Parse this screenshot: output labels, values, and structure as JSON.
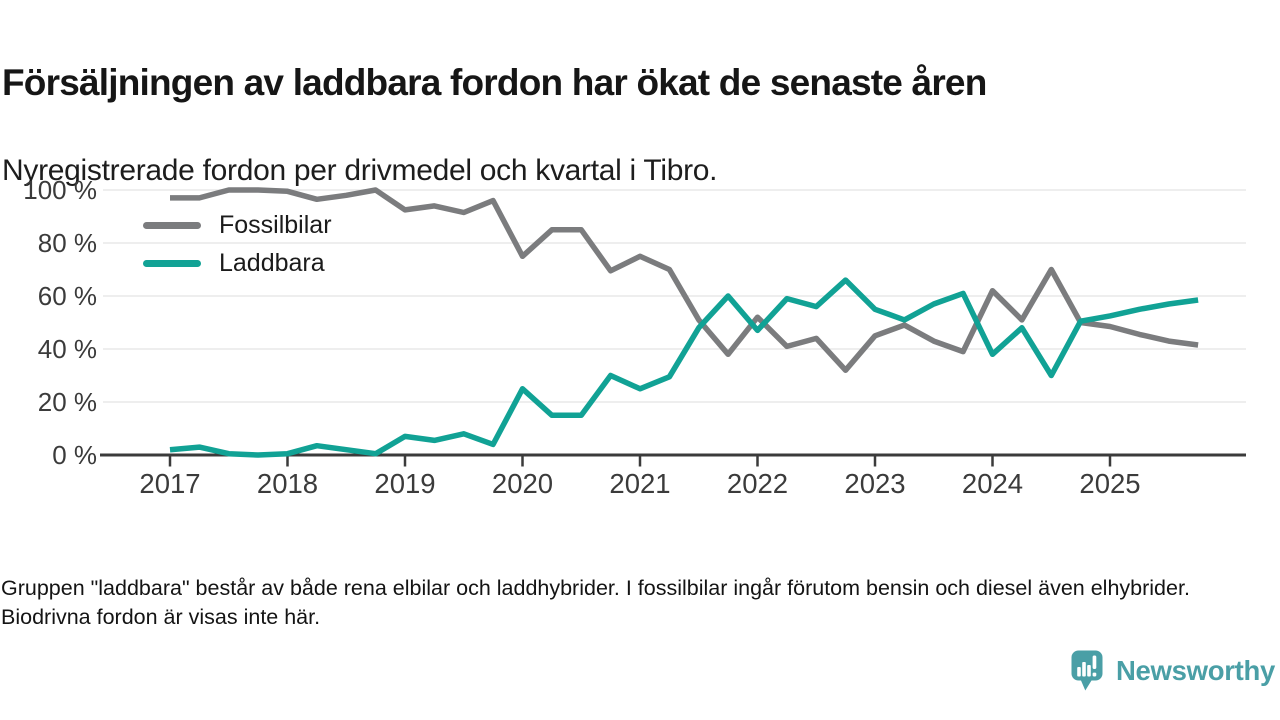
{
  "header": {
    "title": "Försäljningen av laddbara fordon har ökat de senaste åren",
    "subtitle": "Nyregistrerade fordon per drivmedel och kvartal i Tibro."
  },
  "footnote": {
    "text": "Gruppen \"laddbara\" består av både rena elbilar och laddhybrider. I fossilbilar ingår förutom bensin och diesel även elhybrider. Biodrivna fordon är visas inte här."
  },
  "brand": {
    "name": "Newsworthy",
    "icon": "speech-bubble-bar-chart-exclamation-icon",
    "color": "#4a9fa6"
  },
  "colors": {
    "fossil_line": "#7b7c7e",
    "laddbara_line": "#11a295",
    "axis": "#3b3b3b",
    "grid": "#e9e9e9",
    "tick_label": "#3b3b3b",
    "text": "#161616"
  },
  "chart_data": {
    "type": "line",
    "title": "Försäljningen av laddbara fordon har ökat de senaste åren",
    "subtitle": "Nyregistrerade fordon per drivmedel och kvartal i Tibro.",
    "unit": "percent of newly registered vehicles per quarter",
    "grid": true,
    "legend_position": "top-left-inside",
    "ylim": [
      0,
      100
    ],
    "categories": [
      "2017 Q1",
      "2017 Q2",
      "2017 Q3",
      "2017 Q4",
      "2018 Q1",
      "2018 Q2",
      "2018 Q3",
      "2018 Q4",
      "2019 Q1",
      "2019 Q2",
      "2019 Q3",
      "2019 Q4",
      "2020 Q1",
      "2020 Q2",
      "2020 Q3",
      "2020 Q4",
      "2021 Q1",
      "2021 Q2",
      "2021 Q3",
      "2021 Q4",
      "2022 Q1",
      "2022 Q2",
      "2022 Q3",
      "2022 Q4",
      "2023 Q1",
      "2023 Q2",
      "2023 Q3",
      "2023 Q4",
      "2024 Q1",
      "2024 Q2",
      "2024 Q3",
      "2024 Q4",
      "2025 Q1",
      "2025 Q2",
      "2025 Q3",
      "2025 Q4"
    ],
    "series": [
      {
        "name": "Fossilbilar",
        "color": "#7b7c7e",
        "values": [
          97,
          97,
          100,
          100,
          99.5,
          96.5,
          98,
          100,
          92.5,
          94,
          91.5,
          96,
          75,
          85,
          85,
          69.5,
          75,
          70,
          51,
          38,
          52,
          41,
          44,
          32,
          45,
          49,
          43,
          39,
          62,
          51,
          70,
          50,
          48.5,
          45.5,
          43,
          41.5
        ]
      },
      {
        "name": "Laddbara",
        "color": "#11a295",
        "values": [
          2,
          3,
          0.5,
          0,
          0.5,
          3.5,
          2,
          0.5,
          7,
          5.5,
          8,
          4,
          25,
          15,
          15,
          30,
          25,
          29.5,
          48,
          60,
          47,
          59,
          56,
          66,
          55,
          51,
          57,
          61,
          38,
          48,
          30,
          50.5,
          52.5,
          55,
          57,
          58.5
        ]
      }
    ],
    "yticks": [
      {
        "value": 0,
        "label": "0 %"
      },
      {
        "value": 20,
        "label": "20 %"
      },
      {
        "value": 40,
        "label": "40 %"
      },
      {
        "value": 60,
        "label": "60 %"
      },
      {
        "value": 80,
        "label": "80 %"
      },
      {
        "value": 100,
        "label": "100 %"
      }
    ],
    "xticks": [
      {
        "index": 0,
        "label": "2017"
      },
      {
        "index": 4,
        "label": "2018"
      },
      {
        "index": 8,
        "label": "2019"
      },
      {
        "index": 12,
        "label": "2020"
      },
      {
        "index": 16,
        "label": "2021"
      },
      {
        "index": 20,
        "label": "2022"
      },
      {
        "index": 24,
        "label": "2023"
      },
      {
        "index": 28,
        "label": "2024"
      },
      {
        "index": 32,
        "label": "2025"
      }
    ]
  }
}
